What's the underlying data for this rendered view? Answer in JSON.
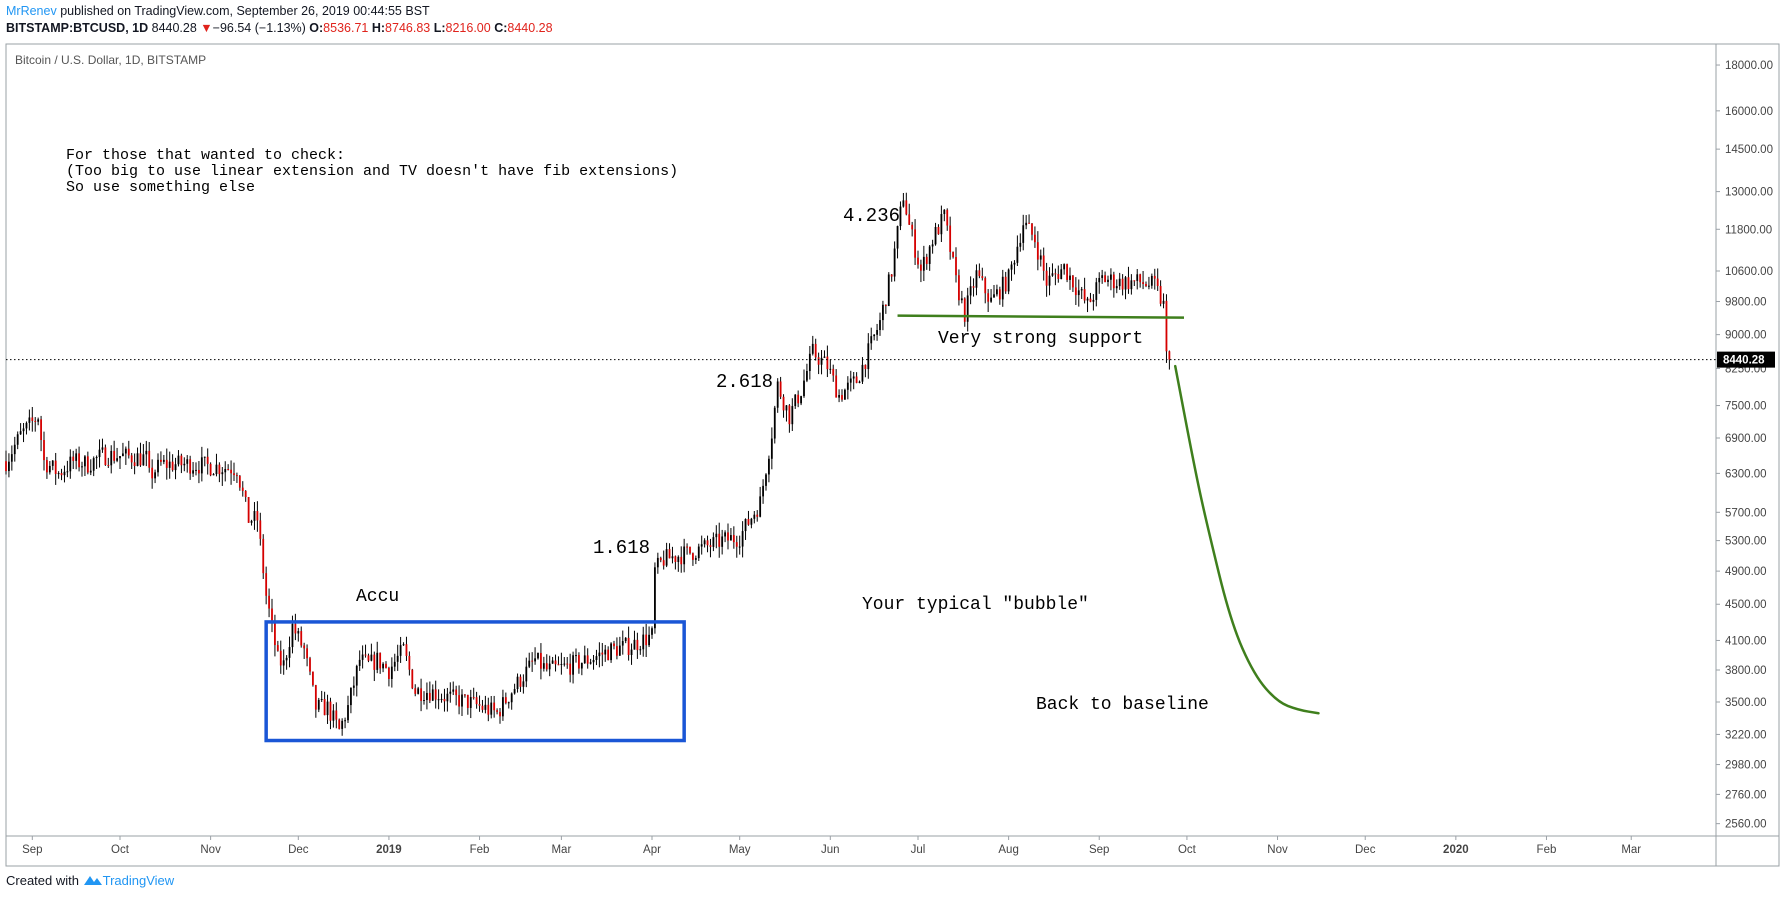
{
  "header": {
    "author": "MrRenev",
    "published": "published on TradingView.com, September 26, 2019 00:44:55 BST",
    "symbol": "BITSTAMP:BTCUSD, 1D",
    "last": "8440.28",
    "change_arrow": "▼",
    "change": "−96.54 (−1.13%)",
    "o_label": "O:",
    "o_value": "8536.71",
    "h_label": "H:",
    "h_value": "8746.83",
    "l_label": "L:",
    "l_value": "8216.00",
    "c_label": "C:",
    "c_value": "8440.28"
  },
  "pane_title": "Bitcoin / U.S. Dollar, 1D, BITSTAMP",
  "footer": {
    "created_with": "Created with",
    "brand": "TradingView"
  },
  "colors": {
    "up": "#000000",
    "down": "#d50000",
    "wick": "#000000",
    "green": "#3f7f1d",
    "blue": "#1a56d6",
    "price_tag": "#000000",
    "brand": "#2196f3"
  },
  "chart_data": {
    "type": "candlestick",
    "title": "Bitcoin / U.S. Dollar, 1D, BITSTAMP",
    "y_scale": "log",
    "y_ticks": [
      2560,
      2760,
      2980,
      3220,
      3500,
      3800,
      4100,
      4500,
      4900,
      5300,
      5700,
      6300,
      6900,
      7500,
      8250,
      9000,
      9800,
      10600,
      11800,
      13000,
      14500,
      16000,
      18000
    ],
    "y_tick_labels": [
      "2560.00",
      "2760.00",
      "2980.00",
      "3220.00",
      "3500.00",
      "3800.00",
      "4100.00",
      "4500.00",
      "4900.00",
      "5300.00",
      "5700.00",
      "6300.00",
      "6900.00",
      "7500.00",
      "8250.00",
      "9000.00",
      "9800.00",
      "10600.00",
      "11800.00",
      "13000.00",
      "14500.00",
      "16000.00",
      "18000.00"
    ],
    "x_ticks": [
      "2018-09-01",
      "2018-10-01",
      "2018-11-01",
      "2018-12-01",
      "2019-01-01",
      "2019-02-01",
      "2019-03-01",
      "2019-04-01",
      "2019-05-01",
      "2019-06-01",
      "2019-07-01",
      "2019-08-01",
      "2019-09-01",
      "2019-10-01",
      "2019-11-01",
      "2019-12-01",
      "2020-01-01",
      "2020-02-01",
      "2020-03-01"
    ],
    "x_tick_labels": [
      "Sep",
      "Oct",
      "Nov",
      "Dec",
      "2019",
      "Feb",
      "Mar",
      "Apr",
      "May",
      "Jun",
      "Jul",
      "Aug",
      "Sep",
      "Oct",
      "Nov",
      "Dec",
      "2020",
      "Feb",
      "Mar"
    ],
    "x_range": [
      "2018-08-23",
      "2020-03-30"
    ],
    "y_range": [
      2480,
      19000
    ],
    "last_price": 8440.28,
    "last_price_label": "8440.28",
    "price_path": [
      [
        "2018-08-23",
        6500
      ],
      [
        "2018-08-28",
        6950
      ],
      [
        "2018-09-03",
        7300
      ],
      [
        "2018-09-05",
        6500
      ],
      [
        "2018-09-10",
        6300
      ],
      [
        "2018-09-15",
        6500
      ],
      [
        "2018-09-20",
        6450
      ],
      [
        "2018-09-25",
        6600
      ],
      [
        "2018-10-01",
        6590
      ],
      [
        "2018-10-10",
        6550
      ],
      [
        "2018-10-11",
        6250
      ],
      [
        "2018-10-15",
        6450
      ],
      [
        "2018-10-25",
        6450
      ],
      [
        "2018-11-05",
        6400
      ],
      [
        "2018-11-10",
        6380
      ],
      [
        "2018-11-14",
        5600
      ],
      [
        "2018-11-17",
        5600
      ],
      [
        "2018-11-20",
        4600
      ],
      [
        "2018-11-24",
        3900
      ],
      [
        "2018-11-26",
        3850
      ],
      [
        "2018-11-29",
        4250
      ],
      [
        "2018-12-03",
        4000
      ],
      [
        "2018-12-07",
        3450
      ],
      [
        "2018-12-11",
        3450
      ],
      [
        "2018-12-15",
        3250
      ],
      [
        "2018-12-18",
        3450
      ],
      [
        "2018-12-22",
        3900
      ],
      [
        "2018-12-25",
        3850
      ],
      [
        "2018-12-28",
        3900
      ],
      [
        "2019-01-01",
        3800
      ],
      [
        "2019-01-06",
        4000
      ],
      [
        "2019-01-10",
        3600
      ],
      [
        "2019-01-15",
        3600
      ],
      [
        "2019-01-20",
        3550
      ],
      [
        "2019-01-28",
        3500
      ],
      [
        "2019-02-02",
        3450
      ],
      [
        "2019-02-07",
        3400
      ],
      [
        "2019-02-12",
        3600
      ],
      [
        "2019-02-20",
        3900
      ],
      [
        "2019-02-24",
        3800
      ],
      [
        "2019-03-01",
        3820
      ],
      [
        "2019-03-10",
        3900
      ],
      [
        "2019-03-18",
        4000
      ],
      [
        "2019-03-25",
        4050
      ],
      [
        "2019-04-01",
        4150
      ],
      [
        "2019-04-02",
        4900
      ],
      [
        "2019-04-05",
        5050
      ],
      [
        "2019-04-15",
        5150
      ],
      [
        "2019-04-25",
        5300
      ],
      [
        "2019-05-01",
        5350
      ],
      [
        "2019-05-08",
        5850
      ],
      [
        "2019-05-12",
        7000
      ],
      [
        "2019-05-14",
        7900
      ],
      [
        "2019-05-18",
        7300
      ],
      [
        "2019-05-22",
        7800
      ],
      [
        "2019-05-26",
        8600
      ],
      [
        "2019-05-31",
        8300
      ],
      [
        "2019-06-04",
        7700
      ],
      [
        "2019-06-10",
        8000
      ],
      [
        "2019-06-14",
        8600
      ],
      [
        "2019-06-18",
        9300
      ],
      [
        "2019-06-22",
        10600
      ],
      [
        "2019-06-26",
        12900
      ],
      [
        "2019-06-28",
        11900
      ],
      [
        "2019-07-02",
        10600
      ],
      [
        "2019-07-06",
        11500
      ],
      [
        "2019-07-10",
        12200
      ],
      [
        "2019-07-14",
        10300
      ],
      [
        "2019-07-17",
        9500
      ],
      [
        "2019-07-21",
        10500
      ],
      [
        "2019-07-26",
        9800
      ],
      [
        "2019-08-01",
        10400
      ],
      [
        "2019-08-06",
        12000
      ],
      [
        "2019-08-10",
        11500
      ],
      [
        "2019-08-14",
        10300
      ],
      [
        "2019-08-20",
        10700
      ],
      [
        "2019-08-28",
        9700
      ],
      [
        "2019-09-02",
        10400
      ],
      [
        "2019-09-08",
        10300
      ],
      [
        "2019-09-15",
        10300
      ],
      [
        "2019-09-20",
        10200
      ],
      [
        "2019-09-23",
        9700
      ],
      [
        "2019-09-24",
        8500
      ],
      [
        "2019-09-25",
        8440
      ]
    ],
    "annotations": [
      {
        "id": "accu",
        "text": "Accu"
      },
      {
        "id": "fib1",
        "text": "1.618"
      },
      {
        "id": "fib2",
        "text": "2.618"
      },
      {
        "id": "fib3",
        "text": "4.236"
      },
      {
        "id": "support",
        "text": "Very strong support"
      },
      {
        "id": "bubble",
        "text": "Your typical \"bubble\""
      },
      {
        "id": "baseline",
        "text": "Back to baseline"
      },
      {
        "id": "note1",
        "text": "For those that wanted to check:"
      },
      {
        "id": "note2",
        "text": "(Too big to use linear extension and TV doesn't have fib extensions)"
      },
      {
        "id": "note3",
        "text": "So use something else"
      }
    ],
    "accumulation_box": {
      "from": "2018-11-20",
      "to": "2019-04-12",
      "low": 3170,
      "high": 4300
    },
    "support_line": {
      "from": "2019-06-24",
      "to": "2019-09-30",
      "price": 9450
    },
    "projection_path": [
      [
        "2019-09-27",
        8300
      ],
      [
        "2019-10-04",
        6300
      ],
      [
        "2019-10-08",
        5500
      ],
      [
        "2019-10-16",
        4300
      ],
      [
        "2019-10-24",
        3750
      ],
      [
        "2019-11-01",
        3500
      ],
      [
        "2019-11-08",
        3430
      ],
      [
        "2019-11-15",
        3400
      ]
    ]
  }
}
